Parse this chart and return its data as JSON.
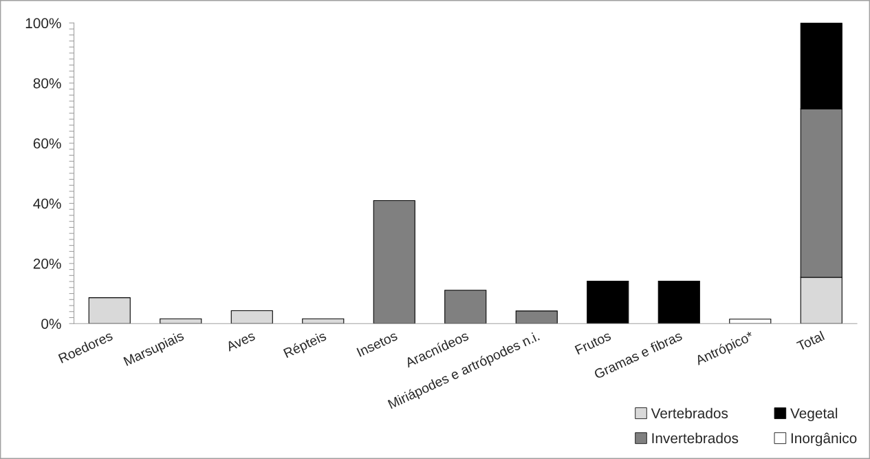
{
  "chart_data": {
    "type": "bar",
    "stacked": true,
    "categories": [
      "Roedores",
      "Marsupiais",
      "Aves",
      "Répteis",
      "Insetos",
      "Aracnídeos",
      "Miriápodes e artrópodes n.i.",
      "Frutos",
      "Gramas e fibras",
      "Antrópico*",
      "Total"
    ],
    "series": [
      {
        "name": "Vertebrados",
        "color": "#d9d9d9",
        "values": [
          8.6,
          1.6,
          4.3,
          1.6,
          null,
          null,
          null,
          null,
          null,
          null,
          15.4
        ]
      },
      {
        "name": "Invertebrados",
        "color": "#808080",
        "values": [
          null,
          null,
          null,
          null,
          40.9,
          11.1,
          4.2,
          null,
          null,
          null,
          56.0
        ]
      },
      {
        "name": "Vegetal",
        "color": "#000000",
        "values": [
          null,
          null,
          null,
          null,
          null,
          null,
          null,
          14.1,
          14.1,
          null,
          28.6
        ]
      },
      {
        "name": "Inorgânico",
        "color": "#ffffff",
        "values": [
          null,
          null,
          null,
          null,
          null,
          null,
          null,
          null,
          null,
          1.5,
          null
        ]
      }
    ],
    "ylim": [
      0,
      100
    ],
    "yticks": [
      {
        "value": 0,
        "label": "0%"
      },
      {
        "value": 2,
        "label": null
      },
      {
        "value": 4,
        "label": null
      },
      {
        "value": 6,
        "label": null
      },
      {
        "value": 8,
        "label": null
      },
      {
        "value": 10,
        "label": null
      },
      {
        "value": 12,
        "label": null
      },
      {
        "value": 14,
        "label": null
      },
      {
        "value": 16,
        "label": null
      },
      {
        "value": 18,
        "label": null
      },
      {
        "value": 20,
        "label": "20%"
      },
      {
        "value": 22,
        "label": null
      },
      {
        "value": 24,
        "label": null
      },
      {
        "value": 26,
        "label": null
      },
      {
        "value": 28,
        "label": null
      },
      {
        "value": 30,
        "label": null
      },
      {
        "value": 32,
        "label": null
      },
      {
        "value": 34,
        "label": null
      },
      {
        "value": 36,
        "label": null
      },
      {
        "value": 38,
        "label": null
      },
      {
        "value": 40,
        "label": "40%"
      },
      {
        "value": 42,
        "label": null
      },
      {
        "value": 44,
        "label": null
      },
      {
        "value": 46,
        "label": null
      },
      {
        "value": 48,
        "label": null
      },
      {
        "value": 50,
        "label": null
      },
      {
        "value": 52,
        "label": null
      },
      {
        "value": 54,
        "label": null
      },
      {
        "value": 56,
        "label": null
      },
      {
        "value": 58,
        "label": null
      },
      {
        "value": 60,
        "label": "60%"
      },
      {
        "value": 62,
        "label": null
      },
      {
        "value": 64,
        "label": null
      },
      {
        "value": 66,
        "label": null
      },
      {
        "value": 68,
        "label": null
      },
      {
        "value": 70,
        "label": null
      },
      {
        "value": 72,
        "label": null
      },
      {
        "value": 74,
        "label": null
      },
      {
        "value": 76,
        "label": null
      },
      {
        "value": 78,
        "label": null
      },
      {
        "value": 80,
        "label": "80%"
      },
      {
        "value": 82,
        "label": null
      },
      {
        "value": 84,
        "label": null
      },
      {
        "value": 86,
        "label": null
      },
      {
        "value": 88,
        "label": null
      },
      {
        "value": 90,
        "label": null
      },
      {
        "value": 92,
        "label": null
      },
      {
        "value": 94,
        "label": null
      },
      {
        "value": 96,
        "label": null
      },
      {
        "value": 98,
        "label": null
      },
      {
        "value": 100,
        "label": "100%"
      }
    ],
    "grid": false,
    "legend": "bottom right"
  }
}
